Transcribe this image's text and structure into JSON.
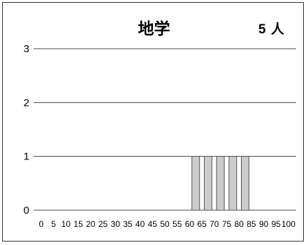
{
  "chart_data": {
    "type": "bar",
    "title": "地学",
    "count_label": "5 人",
    "x_ticks": [
      "0",
      "5",
      "10",
      "15",
      "20",
      "25",
      "30",
      "35",
      "40",
      "45",
      "50",
      "55",
      "60",
      "65",
      "70",
      "75",
      "80",
      "85",
      "90",
      "95",
      "100"
    ],
    "y_ticks": [
      "0",
      "1",
      "2",
      "3"
    ],
    "ylim": [
      0,
      3
    ],
    "bars": [
      {
        "x": 60,
        "value": 1
      },
      {
        "x": 65,
        "value": 1
      },
      {
        "x": 70,
        "value": 1
      },
      {
        "x": 75,
        "value": 1
      },
      {
        "x": 80,
        "value": 1
      }
    ],
    "grid": true,
    "bar_color": "#cccccc",
    "bar_edge_color": "#555555"
  }
}
